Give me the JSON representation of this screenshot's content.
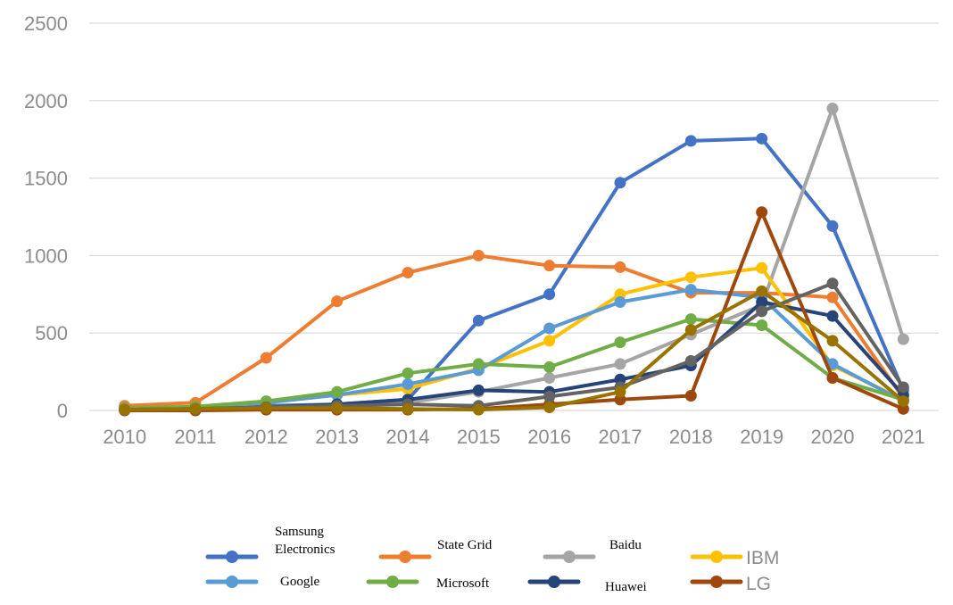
{
  "chart_data": {
    "type": "line",
    "title": "",
    "xlabel": "",
    "ylabel": "",
    "ylim": [
      0,
      2500
    ],
    "yticks": [
      0,
      500,
      1000,
      1500,
      2000,
      2500
    ],
    "grid": "horizontal",
    "legend_position": "bottom",
    "categories": [
      "2010",
      "2011",
      "2012",
      "2013",
      "2014",
      "2015",
      "2016",
      "2017",
      "2018",
      "2019",
      "2020",
      "2021"
    ],
    "series": [
      {
        "name": "Samsung Electronics",
        "legend_lines": [
          "Samsung",
          "Electronics"
        ],
        "color": "#4472c4",
        "values": [
          10,
          20,
          30,
          40,
          70,
          580,
          750,
          1470,
          1740,
          1755,
          1190,
          130
        ]
      },
      {
        "name": "State Grid",
        "color": "#ed7d31",
        "values": [
          30,
          50,
          340,
          705,
          890,
          1000,
          935,
          925,
          760,
          760,
          730,
          80
        ]
      },
      {
        "name": "Baidu",
        "color": "#a5a5a5",
        "values": [
          5,
          10,
          20,
          30,
          50,
          120,
          210,
          300,
          490,
          680,
          1950,
          460
        ]
      },
      {
        "name": "IBM",
        "color": "#ffc000",
        "values": [
          10,
          20,
          50,
          100,
          140,
          270,
          450,
          750,
          860,
          920,
          290,
          70
        ]
      },
      {
        "name": "Google",
        "color": "#5b9bd5",
        "values": [
          10,
          20,
          50,
          100,
          170,
          260,
          530,
          700,
          780,
          730,
          300,
          60
        ]
      },
      {
        "name": "Microsoft",
        "color": "#70ad47",
        "values": [
          15,
          25,
          60,
          120,
          240,
          300,
          280,
          440,
          590,
          550,
          210,
          70
        ]
      },
      {
        "name": "Huawei",
        "color": "#264478",
        "values": [
          5,
          10,
          20,
          40,
          70,
          130,
          120,
          200,
          290,
          700,
          610,
          100
        ]
      },
      {
        "name": "LG",
        "color": "#9e480e",
        "values": [
          0,
          0,
          5,
          5,
          5,
          10,
          40,
          70,
          95,
          1280,
          210,
          10
        ]
      },
      {
        "color": "#636363",
        "values": [
          5,
          10,
          20,
          30,
          40,
          30,
          90,
          150,
          320,
          640,
          820,
          150
        ]
      },
      {
        "color": "#997300",
        "values": [
          5,
          10,
          15,
          15,
          10,
          5,
          20,
          120,
          520,
          770,
          450,
          60
        ]
      }
    ]
  }
}
